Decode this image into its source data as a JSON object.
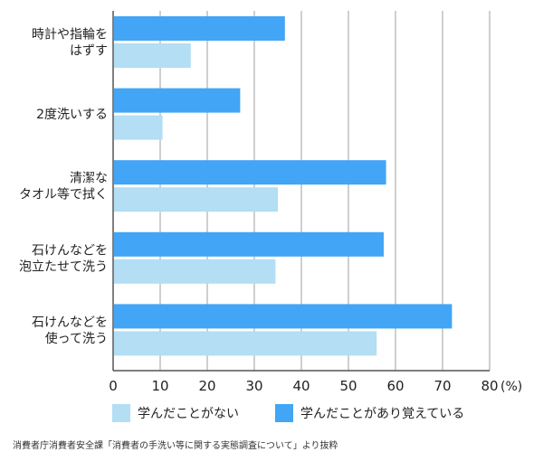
{
  "chart_data": {
    "type": "bar",
    "orientation": "horizontal",
    "categories": [
      [
        "時計や指輪を",
        "はずす"
      ],
      [
        "2度洗いする"
      ],
      [
        "清潔な",
        "タオル等で拭く"
      ],
      [
        "石けんなどを",
        "泡立たせて洗う"
      ],
      [
        "石けんなどを",
        "使って洗う"
      ]
    ],
    "series": [
      {
        "name": "学んだことがあり覚えている",
        "color": "#42a5f5",
        "values": [
          36.5,
          27,
          58,
          57.5,
          72
        ]
      },
      {
        "name": "学んだことがない",
        "color": "#b3def4",
        "values": [
          16.5,
          10.5,
          35,
          34.5,
          56
        ]
      }
    ],
    "x_ticks": [
      "0",
      "10",
      "20",
      "30",
      "40",
      "50",
      "60",
      "70",
      "80"
    ],
    "x_unit": "(%)",
    "xlim": [
      0,
      80
    ],
    "grid": "vertical",
    "legend_order": [
      "学んだことがない",
      "学んだことがあり覚えている"
    ],
    "legend_placement": "bottom"
  },
  "source": "消費者庁消費者安全課「消費者の手洗い等に関する実態調査について」より抜粋"
}
